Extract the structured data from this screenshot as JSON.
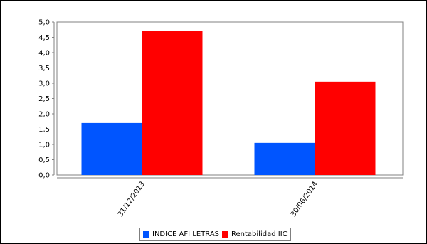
{
  "chart_data": {
    "type": "bar",
    "title": "",
    "xlabel": "",
    "ylabel": "",
    "categories": [
      "31/12/2013",
      "30/06/2014"
    ],
    "series": [
      {
        "name": "INDICE AFI LETRAS",
        "color": "#0055ff",
        "values": [
          1.7,
          1.05
        ]
      },
      {
        "name": "Rentabilidad IIC",
        "color": "#ff0000",
        "values": [
          4.7,
          3.05
        ]
      }
    ],
    "ylim": [
      0,
      5.0
    ],
    "yticks": [
      0.0,
      0.5,
      1.0,
      1.5,
      2.0,
      2.5,
      3.0,
      3.5,
      4.0,
      4.5,
      5.0
    ],
    "ytick_labels": [
      "0,0",
      "0,5",
      "1,0",
      "1,5",
      "2,0",
      "2,5",
      "3,0",
      "3,5",
      "4,0",
      "4,5",
      "5,0"
    ],
    "grid": false,
    "legend": "bottom"
  }
}
